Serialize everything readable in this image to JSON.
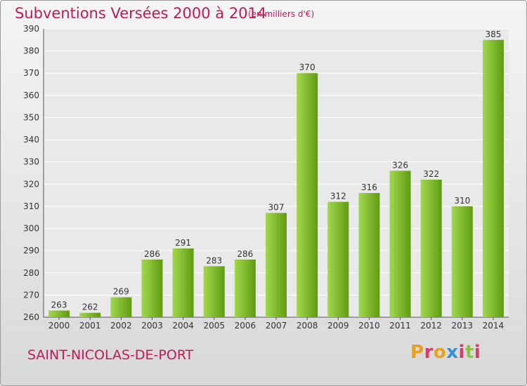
{
  "header": {
    "title": "Subventions Versées 2000 à 2014",
    "unit_note": "(en milliers d'€)"
  },
  "footer": {
    "commune": "SAINT-NICOLAS-DE-PORT",
    "logo_text": "Proxiti"
  },
  "colors": {
    "bar_light": "#a2d84e",
    "bar_dark": "#5f9b12",
    "title": "#c2185b",
    "grid": "#ffffff"
  },
  "chart_data": {
    "type": "bar",
    "title": "Subventions Versées 2000 à 2014",
    "categories": [
      "2000",
      "2001",
      "2002",
      "2003",
      "2004",
      "2005",
      "2006",
      "2007",
      "2008",
      "2009",
      "2010",
      "2011",
      "2012",
      "2013",
      "2014"
    ],
    "values": [
      263,
      262,
      269,
      286,
      291,
      283,
      286,
      307,
      370,
      312,
      316,
      326,
      322,
      310,
      385
    ],
    "ylim": [
      260,
      390
    ],
    "yticks": [
      260,
      270,
      280,
      290,
      300,
      310,
      320,
      330,
      340,
      350,
      360,
      370,
      380,
      390
    ],
    "grid": true,
    "legend": "none",
    "xlabel": "",
    "ylabel": ""
  }
}
